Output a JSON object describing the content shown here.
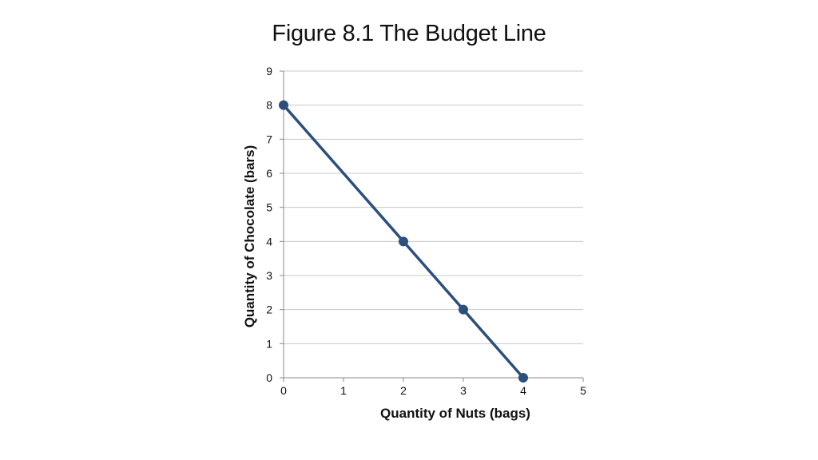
{
  "chart_data": {
    "type": "line",
    "title": "Figure 8.1 The Budget Line",
    "xlabel": "Quantity of Nuts (bags)",
    "ylabel": "Quantity of Chocolate (bars)",
    "xlim": [
      0,
      5
    ],
    "ylim": [
      0,
      9
    ],
    "x_ticks": [
      "0",
      "1",
      "2",
      "3",
      "4",
      "5"
    ],
    "y_ticks": [
      "0",
      "1",
      "2",
      "3",
      "4",
      "5",
      "6",
      "7",
      "8",
      "9"
    ],
    "grid": "horizontal",
    "series": [
      {
        "x": [
          0,
          2,
          3,
          4
        ],
        "y": [
          8,
          4,
          2,
          0
        ]
      }
    ],
    "colors": {
      "line": "#2c4f7c",
      "marker": "#2c4f7c",
      "grid": "#c8c8c8",
      "axis": "#888888"
    }
  }
}
